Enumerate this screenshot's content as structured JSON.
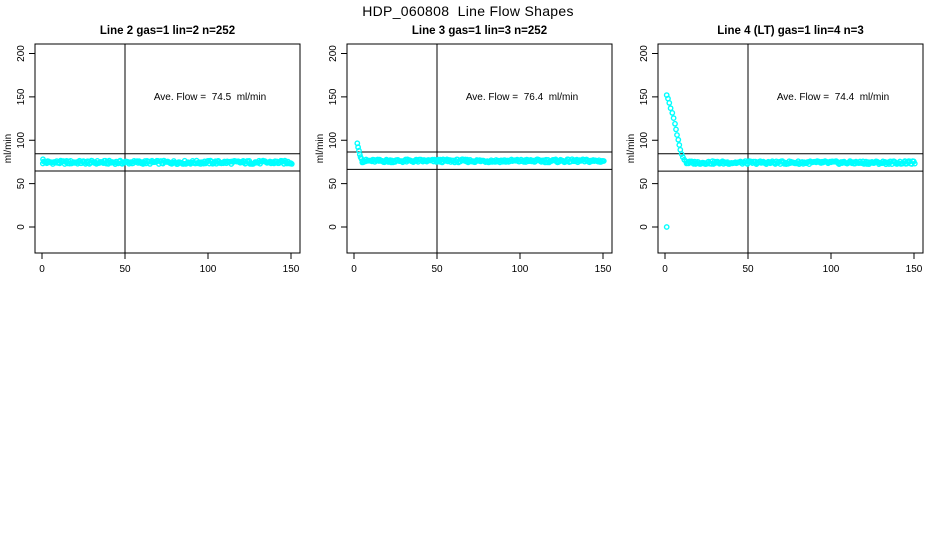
{
  "page": {
    "title": "HDP_060808  Line Flow Shapes"
  },
  "chart_data": [
    {
      "type": "scatter",
      "title": "Line 2 gas=1 lin=2 n=252",
      "annotation": "Ave. Flow =  74.5  ml/min",
      "ave_flow_ml_min": 74.5,
      "n": 252,
      "xlabel": "",
      "ylabel": "ml/min",
      "xticks": [
        0,
        50,
        100,
        150
      ],
      "yticks": [
        0,
        50,
        100,
        150,
        200
      ],
      "xlim": [
        -4,
        155
      ],
      "ylim": [
        -30,
        211
      ],
      "grid": false,
      "vline_x": 50,
      "hlines": [
        84.5,
        64.5
      ],
      "marker_color": "#00FFFF",
      "initial_points": [
        [
          0.6,
          78
        ]
      ],
      "band": {
        "x_start": 0.5,
        "x_end": 150.5,
        "y_center": 74.5,
        "y_spread": 2.0,
        "n_points": 252
      },
      "outliers": []
    },
    {
      "type": "scatter",
      "title": "Line 3 gas=1 lin=3 n=252",
      "annotation": "Ave. Flow =  76.4  ml/min",
      "ave_flow_ml_min": 76.4,
      "n": 252,
      "xlabel": "",
      "ylabel": "ml/min",
      "xticks": [
        0,
        50,
        100,
        150
      ],
      "yticks": [
        0,
        50,
        100,
        150,
        200
      ],
      "xlim": [
        -4,
        155
      ],
      "ylim": [
        -30,
        211
      ],
      "grid": false,
      "vline_x": 50,
      "hlines": [
        86.4,
        66.4
      ],
      "marker_color": "#00FFFF",
      "initial_points": [
        [
          2,
          96.5
        ],
        [
          2.5,
          92
        ],
        [
          3,
          88
        ],
        [
          3.5,
          83.5
        ],
        [
          4,
          80.5
        ],
        [
          4.5,
          78.5
        ]
      ],
      "band": {
        "x_start": 5,
        "x_end": 150.5,
        "y_center": 76.2,
        "y_spread": 1.8,
        "n_points": 252
      },
      "outliers": []
    },
    {
      "type": "scatter",
      "title": "Line 4 (LT) gas=1 lin=4 n=3",
      "annotation": "Ave. Flow =  74.4  ml/min",
      "ave_flow_ml_min": 74.4,
      "n": 3,
      "xlabel": "",
      "ylabel": "ml/min",
      "xticks": [
        0,
        50,
        100,
        150
      ],
      "yticks": [
        0,
        50,
        100,
        150,
        200
      ],
      "xlim": [
        -4,
        155
      ],
      "ylim": [
        -30,
        211
      ],
      "grid": false,
      "vline_x": 50,
      "hlines": [
        84.4,
        64.4
      ],
      "marker_color": "#00FFFF",
      "initial_points": [
        [
          1,
          152
        ],
        [
          1.8,
          148
        ],
        [
          2.6,
          143
        ],
        [
          3.4,
          137
        ],
        [
          4.4,
          131.5
        ],
        [
          5.2,
          125.5
        ],
        [
          6,
          119
        ],
        [
          6.6,
          112.5
        ],
        [
          7.2,
          106
        ],
        [
          8,
          100.5
        ],
        [
          8.6,
          94.5
        ],
        [
          9.2,
          89
        ],
        [
          10,
          84
        ],
        [
          10.8,
          80.5
        ],
        [
          11.6,
          77.5
        ],
        [
          12.8,
          75.5
        ]
      ],
      "band": {
        "x_start": 13,
        "x_end": 150.5,
        "y_center": 74.2,
        "y_spread": 1.8,
        "n_points": 230
      },
      "outliers": [
        [
          1,
          0
        ]
      ]
    }
  ]
}
